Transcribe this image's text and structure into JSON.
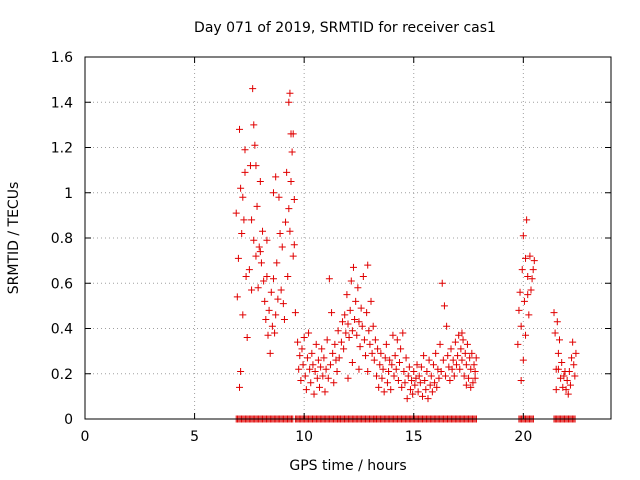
{
  "chart_data": {
    "type": "scatter",
    "title": "Day 071 of 2019, SRMTID for receiver cas1",
    "xlabel": "GPS time / hours",
    "ylabel": "SRMTID / TECUs",
    "xlim": [
      0,
      24
    ],
    "ylim": [
      0,
      1.6
    ],
    "xticks": [
      0,
      5,
      10,
      15,
      20
    ],
    "xtick_labels": [
      "0",
      "5",
      "10",
      "15",
      "20"
    ],
    "yticks": [
      0,
      0.2,
      0.4,
      0.6,
      0.8,
      1.0,
      1.2,
      1.4,
      1.6
    ],
    "ytick_labels": [
      "0",
      "0.2",
      "0.4",
      "0.6",
      "0.8",
      "1",
      "1.2",
      "1.4",
      "1.6"
    ],
    "grid": true,
    "marker": "+",
    "marker_color": "#e00000",
    "series": [
      {
        "name": "SRMTID",
        "points": [
          [
            6.9,
            0.91
          ],
          [
            6.95,
            0.54
          ],
          [
            7.0,
            0.71
          ],
          [
            7.05,
            1.28
          ],
          [
            7.1,
            1.02
          ],
          [
            7.15,
            0.82
          ],
          [
            7.2,
            0.46
          ],
          [
            7.25,
            0.88
          ],
          [
            7.3,
            1.19
          ],
          [
            7.35,
            0.63
          ],
          [
            7.4,
            0.36
          ],
          [
            7.1,
            0.21
          ],
          [
            7.05,
            0.14
          ],
          [
            7.2,
            0.98
          ],
          [
            7.3,
            1.09
          ],
          [
            7.5,
            0.66
          ],
          [
            7.55,
            1.12
          ],
          [
            7.6,
            0.88
          ],
          [
            7.65,
            1.46
          ],
          [
            7.7,
            0.79
          ],
          [
            7.75,
            1.21
          ],
          [
            7.8,
            0.72
          ],
          [
            7.85,
            0.94
          ],
          [
            7.9,
            0.58
          ],
          [
            7.95,
            0.76
          ],
          [
            8.0,
            1.05
          ],
          [
            8.05,
            0.69
          ],
          [
            8.1,
            0.83
          ],
          [
            8.15,
            0.61
          ],
          [
            7.7,
            1.3
          ],
          [
            7.8,
            1.12
          ],
          [
            8.0,
            0.74
          ],
          [
            7.6,
            0.57
          ],
          [
            8.2,
            0.52
          ],
          [
            8.25,
            0.44
          ],
          [
            8.3,
            0.63
          ],
          [
            8.35,
            0.37
          ],
          [
            8.4,
            0.48
          ],
          [
            8.45,
            0.29
          ],
          [
            8.5,
            0.56
          ],
          [
            8.55,
            0.41
          ],
          [
            8.6,
            0.62
          ],
          [
            8.65,
            0.38
          ],
          [
            8.7,
            0.46
          ],
          [
            8.75,
            0.69
          ],
          [
            8.8,
            0.53
          ],
          [
            8.85,
            0.98
          ],
          [
            8.9,
            0.82
          ],
          [
            8.95,
            0.57
          ],
          [
            9.0,
            0.76
          ],
          [
            8.7,
            1.07
          ],
          [
            8.6,
            1.0
          ],
          [
            8.3,
            0.79
          ],
          [
            9.05,
            0.51
          ],
          [
            9.1,
            0.44
          ],
          [
            9.15,
            0.87
          ],
          [
            9.2,
            1.09
          ],
          [
            9.25,
            0.63
          ],
          [
            9.3,
            0.93
          ],
          [
            9.35,
            1.44
          ],
          [
            9.4,
            1.26
          ],
          [
            9.45,
            1.18
          ],
          [
            9.5,
            0.72
          ],
          [
            9.55,
            0.97
          ],
          [
            9.6,
            0.47
          ],
          [
            9.3,
            1.4
          ],
          [
            9.4,
            1.05
          ],
          [
            9.5,
            1.26
          ],
          [
            9.55,
            0.77
          ],
          [
            9.35,
            0.83
          ],
          [
            9.7,
            0.34
          ],
          [
            9.75,
            0.22
          ],
          [
            9.8,
            0.28
          ],
          [
            9.85,
            0.17
          ],
          [
            9.9,
            0.31
          ],
          [
            9.95,
            0.24
          ],
          [
            10.0,
            0.36
          ],
          [
            10.05,
            0.19
          ],
          [
            10.1,
            0.13
          ],
          [
            10.15,
            0.27
          ],
          [
            10.2,
            0.38
          ],
          [
            10.25,
            0.22
          ],
          [
            10.3,
            0.16
          ],
          [
            10.35,
            0.29
          ],
          [
            10.4,
            0.24
          ],
          [
            10.45,
            0.11
          ],
          [
            10.5,
            0.21
          ],
          [
            10.55,
            0.33
          ],
          [
            10.6,
            0.18
          ],
          [
            10.65,
            0.26
          ],
          [
            10.7,
            0.14
          ],
          [
            10.75,
            0.23
          ],
          [
            10.8,
            0.31
          ],
          [
            10.85,
            0.19
          ],
          [
            10.9,
            0.27
          ],
          [
            10.95,
            0.12
          ],
          [
            11.0,
            0.22
          ],
          [
            11.05,
            0.35
          ],
          [
            11.1,
            0.18
          ],
          [
            11.15,
            0.62
          ],
          [
            11.2,
            0.24
          ],
          [
            11.25,
            0.47
          ],
          [
            11.3,
            0.29
          ],
          [
            11.35,
            0.16
          ],
          [
            11.4,
            0.33
          ],
          [
            11.45,
            0.26
          ],
          [
            11.5,
            0.21
          ],
          [
            11.55,
            0.39
          ],
          [
            11.6,
            0.27
          ],
          [
            11.7,
            0.34
          ],
          [
            11.75,
            0.43
          ],
          [
            11.8,
            0.31
          ],
          [
            11.85,
            0.46
          ],
          [
            11.9,
            0.38
          ],
          [
            11.95,
            0.55
          ],
          [
            12.0,
            0.42
          ],
          [
            12.05,
            0.36
          ],
          [
            12.1,
            0.48
          ],
          [
            12.15,
            0.61
          ],
          [
            12.2,
            0.39
          ],
          [
            12.25,
            0.67
          ],
          [
            12.3,
            0.44
          ],
          [
            12.35,
            0.52
          ],
          [
            12.4,
            0.37
          ],
          [
            12.45,
            0.58
          ],
          [
            12.5,
            0.43
          ],
          [
            12.55,
            0.32
          ],
          [
            12.6,
            0.49
          ],
          [
            12.65,
            0.41
          ],
          [
            12.7,
            0.63
          ],
          [
            12.75,
            0.35
          ],
          [
            12.8,
            0.28
          ],
          [
            12.85,
            0.47
          ],
          [
            12.9,
            0.68
          ],
          [
            12.95,
            0.39
          ],
          [
            13.0,
            0.33
          ],
          [
            13.05,
            0.52
          ],
          [
            13.1,
            0.29
          ],
          [
            13.15,
            0.41
          ],
          [
            12.0,
            0.18
          ],
          [
            12.2,
            0.25
          ],
          [
            12.5,
            0.22
          ],
          [
            12.9,
            0.21
          ],
          [
            13.2,
            0.26
          ],
          [
            13.25,
            0.35
          ],
          [
            13.3,
            0.19
          ],
          [
            13.35,
            0.31
          ],
          [
            13.4,
            0.14
          ],
          [
            13.45,
            0.24
          ],
          [
            13.5,
            0.29
          ],
          [
            13.55,
            0.18
          ],
          [
            13.6,
            0.22
          ],
          [
            13.65,
            0.12
          ],
          [
            13.7,
            0.27
          ],
          [
            13.75,
            0.33
          ],
          [
            13.8,
            0.16
          ],
          [
            13.85,
            0.21
          ],
          [
            13.9,
            0.26
          ],
          [
            13.95,
            0.13
          ],
          [
            14.0,
            0.24
          ],
          [
            14.05,
            0.37
          ],
          [
            14.1,
            0.19
          ],
          [
            14.15,
            0.28
          ],
          [
            14.2,
            0.22
          ],
          [
            14.25,
            0.35
          ],
          [
            14.3,
            0.17
          ],
          [
            14.35,
            0.25
          ],
          [
            14.4,
            0.31
          ],
          [
            14.45,
            0.14
          ],
          [
            14.5,
            0.38
          ],
          [
            14.55,
            0.21
          ],
          [
            14.6,
            0.16
          ],
          [
            14.65,
            0.27
          ],
          [
            14.7,
            0.09
          ],
          [
            14.75,
            0.19
          ],
          [
            14.8,
            0.23
          ],
          [
            14.85,
            0.13
          ],
          [
            14.9,
            0.17
          ],
          [
            14.95,
            0.11
          ],
          [
            15.0,
            0.21
          ],
          [
            15.05,
            0.15
          ],
          [
            15.1,
            0.18
          ],
          [
            15.15,
            0.24
          ],
          [
            15.2,
            0.12
          ],
          [
            15.25,
            0.19
          ],
          [
            15.3,
            0.16
          ],
          [
            15.35,
            0.23
          ],
          [
            15.4,
            0.1
          ],
          [
            15.45,
            0.28
          ],
          [
            15.5,
            0.17
          ],
          [
            15.55,
            0.13
          ],
          [
            15.6,
            0.21
          ],
          [
            15.65,
            0.09
          ],
          [
            15.7,
            0.26
          ],
          [
            15.75,
            0.15
          ],
          [
            15.8,
            0.19
          ],
          [
            15.85,
            0.12
          ],
          [
            15.9,
            0.24
          ],
          [
            15.95,
            0.16
          ],
          [
            16.0,
            0.29
          ],
          [
            16.05,
            0.14
          ],
          [
            16.1,
            0.22
          ],
          [
            16.15,
            0.18
          ],
          [
            16.2,
            0.33
          ],
          [
            16.25,
            0.21
          ],
          [
            16.3,
            0.6
          ],
          [
            16.35,
            0.26
          ],
          [
            16.4,
            0.5
          ],
          [
            16.45,
            0.19
          ],
          [
            16.5,
            0.41
          ],
          [
            16.55,
            0.28
          ],
          [
            16.6,
            0.23
          ],
          [
            16.65,
            0.17
          ],
          [
            16.7,
            0.31
          ],
          [
            16.75,
            0.22
          ],
          [
            16.8,
            0.26
          ],
          [
            16.85,
            0.19
          ],
          [
            16.9,
            0.34
          ],
          [
            16.95,
            0.24
          ],
          [
            17.0,
            0.28
          ],
          [
            17.05,
            0.37
          ],
          [
            17.1,
            0.22
          ],
          [
            17.15,
            0.31
          ],
          [
            17.2,
            0.26
          ],
          [
            17.25,
            0.35
          ],
          [
            17.3,
            0.19
          ],
          [
            17.35,
            0.29
          ],
          [
            17.4,
            0.24
          ],
          [
            17.45,
            0.33
          ],
          [
            17.5,
            0.18
          ],
          [
            17.55,
            0.27
          ],
          [
            17.6,
            0.22
          ],
          [
            17.65,
            0.29
          ],
          [
            17.7,
            0.16
          ],
          [
            17.75,
            0.24
          ],
          [
            17.8,
            0.21
          ],
          [
            17.85,
            0.27
          ],
          [
            17.2,
            0.38
          ],
          [
            17.4,
            0.15
          ],
          [
            17.6,
            0.14
          ],
          [
            17.8,
            0.18
          ],
          [
            19.75,
            0.33
          ],
          [
            19.8,
            0.48
          ],
          [
            19.85,
            0.56
          ],
          [
            19.9,
            0.41
          ],
          [
            19.95,
            0.66
          ],
          [
            20.0,
            0.81
          ],
          [
            20.05,
            0.52
          ],
          [
            20.1,
            0.71
          ],
          [
            20.15,
            0.88
          ],
          [
            20.2,
            0.63
          ],
          [
            20.25,
            0.46
          ],
          [
            20.3,
            0.72
          ],
          [
            20.35,
            0.57
          ],
          [
            20.4,
            0.62
          ],
          [
            20.45,
            0.66
          ],
          [
            20.5,
            0.7
          ],
          [
            19.9,
            0.17
          ],
          [
            20.0,
            0.26
          ],
          [
            20.1,
            0.37
          ],
          [
            20.2,
            0.55
          ],
          [
            21.4,
            0.47
          ],
          [
            21.45,
            0.38
          ],
          [
            21.5,
            0.22
          ],
          [
            21.55,
            0.43
          ],
          [
            21.6,
            0.29
          ],
          [
            21.65,
            0.35
          ],
          [
            21.7,
            0.18
          ],
          [
            21.75,
            0.25
          ],
          [
            21.8,
            0.14
          ],
          [
            21.85,
            0.19
          ],
          [
            21.9,
            0.21
          ],
          [
            21.95,
            0.13
          ],
          [
            22.0,
            0.17
          ],
          [
            22.05,
            0.11
          ],
          [
            22.1,
            0.21
          ],
          [
            22.15,
            0.15
          ],
          [
            22.2,
            0.27
          ],
          [
            22.25,
            0.34
          ],
          [
            22.3,
            0.24
          ],
          [
            22.35,
            0.19
          ],
          [
            22.4,
            0.29
          ],
          [
            21.5,
            0.13
          ],
          [
            21.6,
            0.22
          ]
        ],
        "zero_band": [
          [
            6.9,
            9.5
          ],
          [
            9.6,
            11.6
          ],
          [
            11.6,
            13.3
          ],
          [
            13.3,
            15.4
          ],
          [
            15.4,
            17.9
          ],
          [
            19.8,
            20.5
          ],
          [
            21.4,
            22.4
          ]
        ]
      }
    ]
  }
}
